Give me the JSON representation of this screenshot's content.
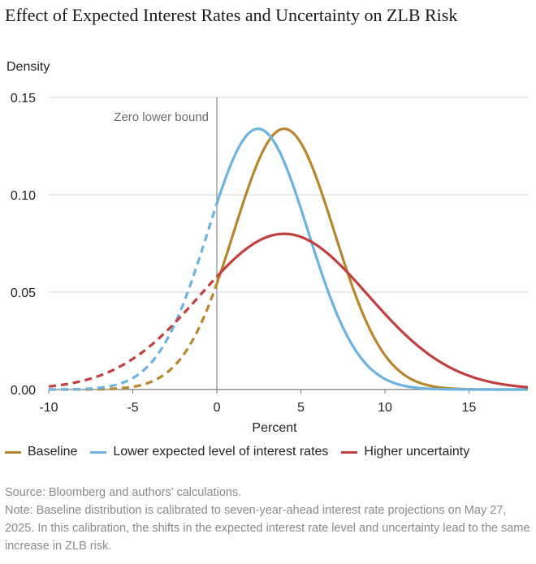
{
  "chart_data": {
    "type": "line",
    "title": "Effect of Expected Interest Rates and Uncertainty on ZLB Risk",
    "xlabel": "Percent",
    "ylabel": "Density",
    "xlim": [
      -10,
      18.5
    ],
    "ylim": [
      0,
      0.15
    ],
    "x_ticks": [
      -10,
      -5,
      0,
      5,
      10,
      15
    ],
    "x_tick_labels": [
      "-10",
      "-5",
      "0",
      "5",
      "10",
      "15"
    ],
    "y_ticks": [
      0,
      0.05,
      0.1,
      0.15
    ],
    "y_tick_labels": [
      "0.00",
      "0.05",
      "0.10",
      "0.15"
    ],
    "grid": "horizontal",
    "reference_line": {
      "x": 0,
      "label": "Zero lower bound"
    },
    "line_style_note": "dashed below zero, solid above zero",
    "series": [
      {
        "name": "Baseline",
        "color": "#b8862f",
        "distribution": "normal",
        "mean": 4.0,
        "sd": 2.98,
        "peak": 0.134
      },
      {
        "name": "Lower expected level of interest rates",
        "color": "#6cb3e0",
        "distribution": "normal",
        "mean": 2.45,
        "sd": 2.98,
        "peak": 0.134
      },
      {
        "name": "Higher uncertainty",
        "color": "#c1403f",
        "distribution": "normal",
        "mean": 4.0,
        "sd": 4.99,
        "peak": 0.08
      }
    ]
  },
  "legend": [
    {
      "label": "Baseline",
      "color": "#b8862f"
    },
    {
      "label": "Lower expected level of interest rates",
      "color": "#6cb3e0"
    },
    {
      "label": "Higher uncertainty",
      "color": "#c1403f"
    }
  ],
  "footer": {
    "source": "Source: Bloomberg and authors’ calculations.",
    "note": "Note: Baseline distribution is calibrated to seven-year-ahead interest rate projections on May 27, 2025. In this calibration, the shifts in the expected interest rate level and uncertainty lead to the same increase in ZLB risk."
  }
}
